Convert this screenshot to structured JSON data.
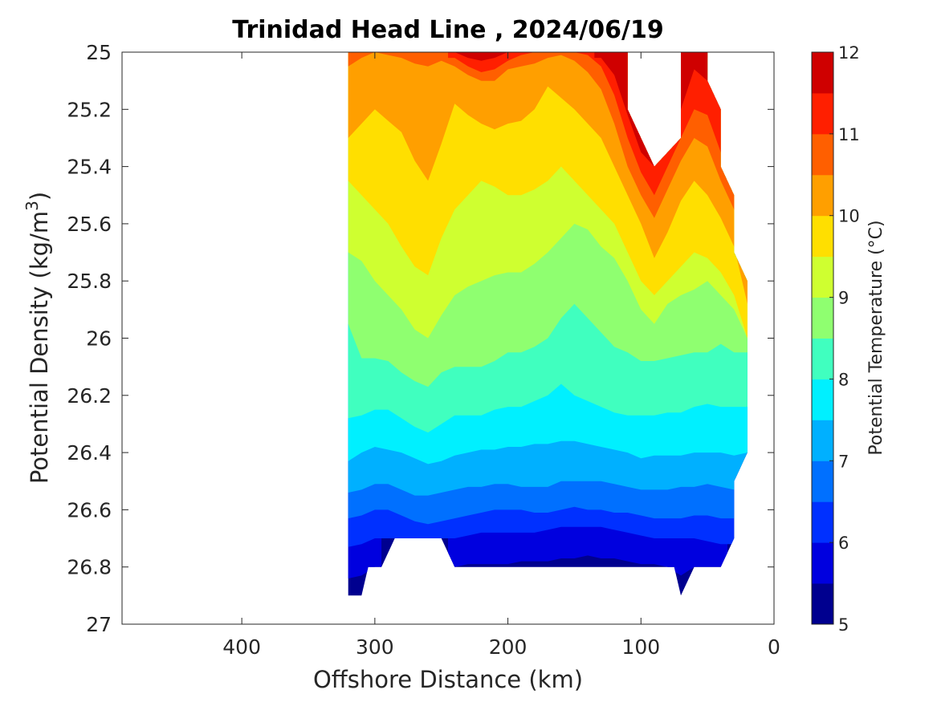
{
  "chart_data": {
    "type": "contour",
    "title": "Trinidad Head Line , 2024/06/19",
    "xlabel": "Offshore Distance (km)",
    "ylabel_main": "Potential Density (kg/m",
    "ylabel_sup": "3",
    "ylabel_close": ")",
    "colorbar_label": "Potential Temperature (°C)",
    "xlim": [
      490,
      0
    ],
    "ylim": [
      25,
      27
    ],
    "x_ticks": [
      400,
      300,
      200,
      100,
      0
    ],
    "x_tick_labels": [
      "400",
      "300",
      "200",
      "100",
      "0"
    ],
    "y_ticks": [
      25,
      25.2,
      25.4,
      25.6,
      25.8,
      26,
      26.2,
      26.4,
      26.6,
      26.8,
      27
    ],
    "y_tick_labels": [
      "25",
      "25.2",
      "25.4",
      "25.6",
      "25.8",
      "26",
      "26.2",
      "26.4",
      "26.6",
      "26.8",
      "27"
    ],
    "colorbar_range": [
      5,
      12
    ],
    "colorbar_ticks": [
      5,
      6,
      7,
      8,
      9,
      10,
      11,
      12
    ],
    "colorbar_tick_labels": [
      "5",
      "6",
      "7",
      "8",
      "9",
      "10",
      "11",
      "12"
    ],
    "levels": [
      5,
      5.5,
      6,
      6.5,
      7,
      7.5,
      8,
      8.5,
      9,
      9.5,
      10,
      10.5,
      11,
      11.5,
      12
    ],
    "level_colors": [
      "#00008f",
      "#0000df",
      "#0030ff",
      "#0070ff",
      "#00b0ff",
      "#00f0ff",
      "#40ffbf",
      "#8fff70",
      "#cfff30",
      "#ffdf00",
      "#ff9f00",
      "#ff5f00",
      "#ff1f00",
      "#cf0000"
    ],
    "station_x_km": [
      320,
      310,
      300,
      290,
      280,
      270,
      260,
      250,
      240,
      230,
      220,
      210,
      200,
      190,
      180,
      170,
      160,
      150,
      140,
      130,
      120,
      110,
      100,
      90,
      80,
      70,
      60,
      50,
      40,
      30,
      20
    ],
    "isopycnal_depth_of_isotherms": [
      {
        "temp": 12.0,
        "density": [
          null,
          null,
          null,
          null,
          null,
          null,
          null,
          null,
          null,
          null,
          null,
          null,
          null,
          null,
          null,
          null,
          null,
          null,
          null,
          null,
          null,
          null,
          null,
          null,
          null,
          25.0,
          25.0,
          25.02,
          null,
          null,
          null
        ]
      },
      {
        "temp": 11.5,
        "density": [
          null,
          null,
          null,
          null,
          null,
          null,
          null,
          null,
          25.0,
          25.02,
          25.03,
          25.02,
          25.0,
          null,
          null,
          null,
          null,
          null,
          null,
          25.02,
          25.08,
          25.22,
          25.35,
          25.4,
          25.3,
          25.2,
          25.06,
          25.1,
          25.2,
          null,
          null
        ]
      },
      {
        "temp": 11.0,
        "density": [
          null,
          null,
          null,
          null,
          null,
          null,
          null,
          null,
          25.02,
          25.05,
          25.07,
          25.06,
          25.03,
          25.01,
          25.0,
          25.0,
          25.0,
          25.0,
          25.01,
          25.05,
          25.15,
          25.3,
          25.42,
          25.5,
          25.4,
          25.3,
          25.2,
          25.22,
          25.35,
          25.45,
          null
        ]
      },
      {
        "temp": 10.5,
        "density": [
          25.05,
          25.02,
          25.0,
          25.01,
          25.02,
          25.04,
          25.05,
          25.03,
          25.05,
          25.08,
          25.1,
          25.1,
          25.06,
          25.05,
          25.04,
          25.02,
          25.01,
          25.03,
          25.07,
          25.13,
          25.25,
          25.4,
          25.5,
          25.58,
          25.48,
          25.38,
          25.3,
          25.33,
          25.45,
          25.55,
          25.8
        ]
      },
      {
        "temp": 10.0,
        "density": [
          25.3,
          25.25,
          25.2,
          25.24,
          25.28,
          25.38,
          25.45,
          25.32,
          25.18,
          25.22,
          25.25,
          25.27,
          25.25,
          25.24,
          25.2,
          25.12,
          25.16,
          25.2,
          25.25,
          25.3,
          25.4,
          25.5,
          25.6,
          25.72,
          25.63,
          25.52,
          25.45,
          25.5,
          25.58,
          25.68,
          25.88
        ]
      },
      {
        "temp": 9.5,
        "density": [
          25.45,
          25.5,
          25.55,
          25.6,
          25.68,
          25.75,
          25.78,
          25.65,
          25.55,
          25.5,
          25.45,
          25.47,
          25.5,
          25.5,
          25.48,
          25.45,
          25.4,
          25.45,
          25.5,
          25.55,
          25.6,
          25.7,
          25.8,
          25.85,
          25.8,
          25.75,
          25.7,
          25.72,
          25.77,
          25.85,
          26.0
        ]
      },
      {
        "temp": 9.0,
        "density": [
          25.7,
          25.73,
          25.8,
          25.85,
          25.9,
          25.97,
          26.0,
          25.92,
          25.85,
          25.82,
          25.8,
          25.78,
          25.77,
          25.77,
          25.74,
          25.7,
          25.65,
          25.6,
          25.62,
          25.68,
          25.72,
          25.8,
          25.9,
          25.95,
          25.88,
          25.85,
          25.83,
          25.8,
          25.85,
          25.9,
          26.0
        ]
      },
      {
        "temp": 8.5,
        "density": [
          25.95,
          26.07,
          26.07,
          26.08,
          26.12,
          26.15,
          26.17,
          26.12,
          26.1,
          26.1,
          26.1,
          26.08,
          26.05,
          26.05,
          26.03,
          26.0,
          25.93,
          25.88,
          25.93,
          25.98,
          26.03,
          26.05,
          26.08,
          26.08,
          26.07,
          26.06,
          26.05,
          26.05,
          26.02,
          26.05,
          26.05
        ]
      },
      {
        "temp": 8.0,
        "density": [
          26.28,
          26.27,
          26.25,
          26.25,
          26.28,
          26.31,
          26.33,
          26.3,
          26.27,
          26.27,
          26.27,
          26.25,
          26.24,
          26.24,
          26.22,
          26.2,
          26.16,
          26.2,
          26.22,
          26.24,
          26.26,
          26.27,
          26.27,
          26.27,
          26.26,
          26.26,
          26.24,
          26.23,
          26.24,
          26.24,
          26.24
        ]
      },
      {
        "temp": 7.5,
        "density": [
          26.43,
          26.4,
          26.38,
          26.39,
          26.4,
          26.42,
          26.44,
          26.43,
          26.41,
          26.4,
          26.39,
          26.39,
          26.38,
          26.38,
          26.37,
          26.37,
          26.36,
          26.36,
          26.37,
          26.38,
          26.39,
          26.4,
          26.42,
          26.41,
          26.41,
          26.41,
          26.4,
          26.4,
          26.4,
          26.41,
          26.4
        ]
      },
      {
        "temp": 7.0,
        "density": [
          26.54,
          26.53,
          26.51,
          26.51,
          26.53,
          26.55,
          26.55,
          26.54,
          26.53,
          26.52,
          26.52,
          26.51,
          26.51,
          26.52,
          26.52,
          26.52,
          26.5,
          26.5,
          26.5,
          26.5,
          26.51,
          26.52,
          26.53,
          26.53,
          26.53,
          26.52,
          26.52,
          26.51,
          26.52,
          26.53,
          26.45
        ]
      },
      {
        "temp": 6.5,
        "density": [
          26.63,
          26.62,
          26.6,
          26.6,
          26.62,
          26.64,
          26.65,
          26.64,
          26.63,
          26.62,
          26.61,
          26.6,
          26.6,
          26.6,
          26.61,
          26.61,
          26.6,
          26.59,
          26.6,
          26.6,
          26.61,
          26.61,
          26.62,
          26.63,
          26.63,
          26.63,
          26.62,
          26.62,
          26.63,
          26.63,
          null
        ]
      },
      {
        "temp": 6.0,
        "density": [
          26.73,
          26.72,
          26.7,
          26.7,
          26.7,
          26.7,
          26.7,
          26.7,
          26.7,
          26.69,
          26.68,
          26.68,
          26.68,
          26.68,
          26.68,
          26.67,
          26.66,
          26.66,
          26.66,
          26.66,
          26.67,
          26.68,
          26.69,
          26.7,
          26.7,
          26.7,
          26.7,
          26.71,
          26.72,
          26.72,
          null
        ]
      },
      {
        "temp": 5.5,
        "density": [
          26.84,
          26.83,
          26.8,
          null,
          null,
          null,
          null,
          null,
          26.8,
          26.79,
          26.79,
          26.79,
          26.79,
          26.78,
          26.78,
          26.78,
          26.77,
          26.77,
          26.76,
          26.77,
          26.77,
          26.78,
          26.79,
          26.79,
          26.8,
          26.83,
          26.8,
          26.8,
          26.8,
          null,
          null
        ]
      }
    ],
    "data_extent_boundary_km_density": [
      [
        320,
        25.0
      ],
      [
        320,
        26.9
      ],
      [
        310,
        26.9
      ],
      [
        305,
        26.8
      ],
      [
        295,
        26.8
      ],
      [
        285,
        26.7
      ],
      [
        250,
        26.7
      ],
      [
        240,
        26.8
      ],
      [
        75,
        26.8
      ],
      [
        70,
        26.9
      ],
      [
        60,
        26.8
      ],
      [
        40,
        26.8
      ],
      [
        30,
        26.7
      ],
      [
        30,
        26.5
      ],
      [
        20,
        26.4
      ],
      [
        20,
        25.8
      ],
      [
        30,
        25.7
      ],
      [
        30,
        25.5
      ],
      [
        40,
        25.4
      ],
      [
        40,
        25.2
      ],
      [
        50,
        25.1
      ],
      [
        50,
        25.0
      ],
      [
        70,
        25.0
      ],
      [
        70,
        25.3
      ],
      [
        90,
        25.4
      ],
      [
        110,
        25.2
      ],
      [
        110,
        25.0
      ]
    ]
  }
}
